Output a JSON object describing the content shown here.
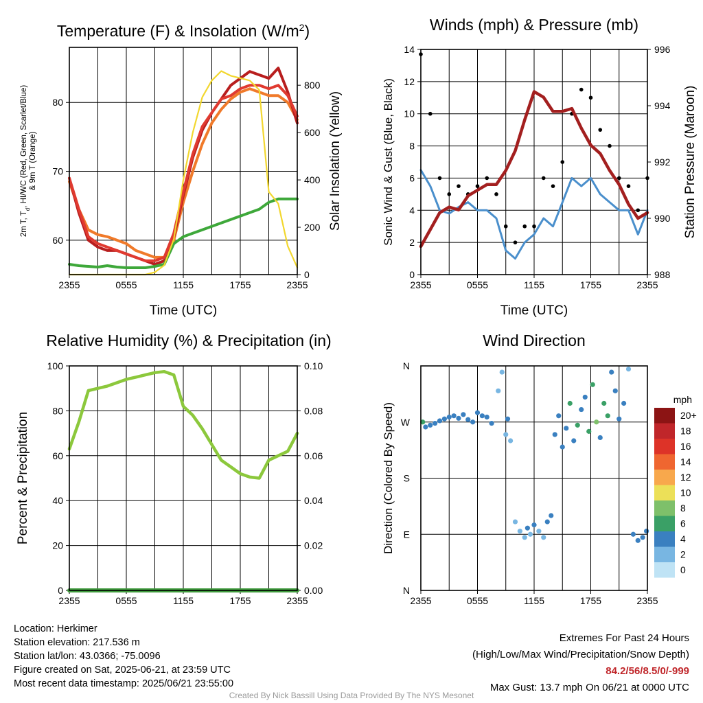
{
  "chart_data": [
    {
      "type": "line",
      "title": "Temperature (F) & Insolation (W/m2)",
      "title_main": "Temperature (F) & Insolation (W/m",
      "title_sup": "2",
      "title_end": ")",
      "xlabel": "Time (UTC)",
      "ylabel_left_lines": [
        "2m T, T, HI/WC (Red, Green, Scarlet/Blue)",
        "& 9m T (Orange)"
      ],
      "ylabel_left_sub": "d",
      "ylabel_right": "Solar Insolation (Yellow)",
      "xticks": [
        "2355",
        "0555",
        "1155",
        "1755",
        "2355"
      ],
      "ylim": [
        55,
        88
      ],
      "yticks": [
        60,
        70,
        80
      ],
      "y2lim": [
        0,
        960
      ],
      "y2ticks": [
        0,
        200,
        400,
        600,
        800
      ],
      "x_hours": [
        0,
        1,
        2,
        3,
        4,
        5,
        6,
        7,
        8,
        9,
        10,
        11,
        12,
        13,
        14,
        15,
        16,
        17,
        18,
        19,
        20,
        21,
        22,
        23,
        24
      ],
      "series": [
        {
          "color": "#f07a2a",
          "values": [
            68.5,
            64.5,
            61.5,
            60.8,
            60.5,
            60.0,
            59.5,
            58.5,
            58.0,
            57.5,
            57.5,
            60.0,
            65.5,
            70.0,
            74.0,
            77.0,
            79.0,
            80.5,
            81.5,
            82.0,
            81.5,
            81.0,
            81.0,
            80.0,
            77.5
          ]
        },
        {
          "color": "#b81e1e",
          "values": [
            69.0,
            64.0,
            60.0,
            59.0,
            58.5,
            58.5,
            58.0,
            57.5,
            57.0,
            56.5,
            57.0,
            60.5,
            66.5,
            72.0,
            76.0,
            78.5,
            80.5,
            82.5,
            83.5,
            84.5,
            84.0,
            83.5,
            85.0,
            81.5,
            77.0
          ]
        },
        {
          "color": "#e03a30",
          "values": [
            69.0,
            64.5,
            60.5,
            59.5,
            59.0,
            58.5,
            58.0,
            57.5,
            57.0,
            57.0,
            57.5,
            61.0,
            67.0,
            72.5,
            76.5,
            78.5,
            80.5,
            81.0,
            82.0,
            82.5,
            82.5,
            82.0,
            82.5,
            81.0,
            78.0
          ]
        },
        {
          "color": "#3ea83a",
          "values": [
            56.5,
            56.3,
            56.2,
            56.1,
            56.3,
            56.1,
            56.0,
            56.0,
            56.0,
            56.2,
            56.5,
            59.5,
            60.5,
            61.0,
            61.5,
            62.0,
            62.5,
            63.0,
            63.5,
            64.0,
            64.5,
            65.5,
            66.0,
            66.0,
            66.0
          ]
        },
        {
          "color": "#f2d72f",
          "axis": "right",
          "values": [
            0,
            0,
            0,
            0,
            0,
            0,
            0,
            0,
            0,
            10,
            40,
            150,
            400,
            600,
            750,
            820,
            860,
            840,
            830,
            820,
            780,
            350,
            300,
            120,
            30
          ]
        }
      ]
    },
    {
      "type": "line",
      "title": "Winds (mph) & Pressure (mb)",
      "xlabel": "Time (UTC)",
      "ylabel": "Sonic Wind & Gust (Blue, Black)",
      "ylabel_right": "Station Pressure (Maroon)",
      "xticks": [
        "2355",
        "0555",
        "1155",
        "1755",
        "2355"
      ],
      "ylim": [
        0,
        14
      ],
      "yticks": [
        0,
        2,
        4,
        6,
        8,
        10,
        12,
        14
      ],
      "y2lim": [
        988,
        996
      ],
      "y2ticks": [
        988,
        990,
        992,
        994,
        996
      ],
      "x_hours": [
        0,
        1,
        2,
        3,
        4,
        5,
        6,
        7,
        8,
        9,
        10,
        11,
        12,
        13,
        14,
        15,
        16,
        17,
        18,
        19,
        20,
        21,
        22,
        23,
        24
      ],
      "series": [
        {
          "name_hint": "wind",
          "color": "#4a8fcc",
          "values": [
            6.5,
            5.5,
            4.0,
            3.8,
            4.2,
            4.5,
            4.0,
            4.0,
            3.5,
            1.5,
            1.0,
            2.0,
            2.5,
            3.5,
            3.0,
            4.5,
            6.0,
            5.5,
            6.0,
            5.0,
            4.5,
            4.0,
            4.0,
            2.5,
            4.0
          ]
        },
        {
          "name_hint": "gust",
          "color": "#000000",
          "values": [
            13.7,
            10.0,
            6.0,
            5.0,
            5.5,
            5.0,
            5.5,
            6.0,
            5.0,
            3.0,
            2.0,
            3.0,
            3.0,
            6.0,
            5.5,
            7.0,
            10.0,
            11.5,
            11.0,
            9.0,
            8.0,
            6.0,
            5.5,
            4.0,
            6.0
          ]
        },
        {
          "name_hint": "pressure",
          "color": "#a31f1f",
          "axis": "right",
          "values": [
            989.0,
            989.6,
            990.2,
            990.4,
            990.3,
            990.8,
            991.0,
            991.2,
            991.2,
            991.7,
            992.4,
            993.5,
            994.5,
            994.3,
            993.8,
            993.8,
            993.9,
            993.2,
            992.6,
            992.3,
            991.7,
            991.2,
            990.5,
            990.0,
            990.2
          ]
        }
      ]
    },
    {
      "type": "line",
      "title": "Relative Humidity (%) & Precipitation (in)",
      "ylabel": "Percent & Precipitation",
      "xticks": [
        "2355",
        "0555",
        "1155",
        "1755",
        "2355"
      ],
      "ylim": [
        0,
        100
      ],
      "yticks": [
        0,
        20,
        40,
        60,
        80,
        100
      ],
      "y2lim": [
        0,
        0.1
      ],
      "y2ticks": [
        "0.00",
        "0.02",
        "0.04",
        "0.06",
        "0.08",
        "0.10"
      ],
      "x_hours": [
        0,
        1,
        2,
        3,
        4,
        5,
        6,
        7,
        8,
        9,
        10,
        11,
        12,
        13,
        14,
        15,
        16,
        17,
        18,
        19,
        20,
        21,
        22,
        23,
        24
      ],
      "series": [
        {
          "name_hint": "rh",
          "color": "#8cc83c",
          "values": [
            63,
            75,
            89,
            90,
            91,
            92.5,
            94,
            95,
            96,
            97,
            97.5,
            96,
            82,
            78,
            72,
            65,
            58,
            55,
            52,
            50.5,
            50,
            58,
            60,
            62,
            70
          ]
        },
        {
          "name_hint": "precip",
          "color": "#3f9b3c",
          "axis": "right",
          "values": [
            0,
            0,
            0,
            0,
            0,
            0,
            0,
            0,
            0,
            0,
            0,
            0,
            0,
            0,
            0,
            0,
            0,
            0,
            0,
            0,
            0,
            0,
            0,
            0,
            0
          ]
        }
      ]
    },
    {
      "type": "scatter",
      "title": "Wind Direction",
      "ylabel": "Direction (Colored By Speed)",
      "xticks": [
        "2355",
        "0555",
        "1155",
        "1755",
        "2355"
      ],
      "yticks": [
        "N",
        "E",
        "S",
        "W",
        "N"
      ],
      "ylim": [
        0,
        360
      ],
      "legend_title": "mph",
      "legend_labels": [
        "20+",
        "18",
        "16",
        "14",
        "12",
        "10",
        "8",
        "6",
        "4",
        "2",
        "0"
      ],
      "legend_colors": [
        "#8c1414",
        "#c0262a",
        "#dd3328",
        "#ef6630",
        "#f8a84c",
        "#ece058",
        "#7ec06a",
        "#3aa066",
        "#3a80c0",
        "#78b6e2",
        "#bfe3f5"
      ],
      "x_hours": [
        0.2,
        0.5,
        1.0,
        1.5,
        2.0,
        2.5,
        3.0,
        3.5,
        4.0,
        4.5,
        5.0,
        5.5,
        6.0,
        6.5,
        7.0,
        7.5,
        8.2,
        8.6,
        9.0,
        9.2,
        9.5,
        10.0,
        10.5,
        11.0,
        11.3,
        11.6,
        12.0,
        12.5,
        13.0,
        13.4,
        13.8,
        14.2,
        14.6,
        15.0,
        15.4,
        15.8,
        16.2,
        16.6,
        17.0,
        17.4,
        17.8,
        18.2,
        18.6,
        19.0,
        19.4,
        19.8,
        20.2,
        20.6,
        21.0,
        21.5,
        22.0,
        22.5,
        23.0,
        23.5,
        23.9
      ],
      "y_deg": [
        270,
        262,
        265,
        268,
        272,
        275,
        278,
        280,
        276,
        282,
        274,
        270,
        285,
        280,
        278,
        268,
        320,
        350,
        250,
        275,
        240,
        110,
        95,
        85,
        100,
        90,
        105,
        95,
        85,
        110,
        120,
        250,
        280,
        230,
        260,
        300,
        240,
        265,
        290,
        310,
        255,
        330,
        270,
        245,
        300,
        280,
        350,
        320,
        275,
        300,
        355,
        90,
        80,
        85,
        95
      ],
      "speed": [
        6,
        4,
        4,
        4,
        4,
        4,
        4,
        4,
        4,
        4,
        3,
        4,
        4,
        3,
        4,
        4,
        2,
        1,
        2,
        3,
        1,
        2,
        1,
        2,
        3,
        2,
        3,
        2,
        2,
        4,
        3,
        4,
        3,
        3,
        4,
        5,
        4,
        6,
        4,
        4,
        6,
        5,
        7,
        4,
        5,
        6,
        3,
        4,
        4,
        3,
        2,
        4,
        3,
        4,
        4
      ]
    }
  ],
  "info": {
    "location": "Location: Herkimer",
    "elevation": "Station elevation: 217.536 m",
    "latlon": "Station lat/lon: 43.0366; -75.0096",
    "created": "Figure created on Sat, 2025-06-21, at 23:59 UTC",
    "recent": "Most recent data timestamp: 2025/06/21 23:55:00"
  },
  "extremes": {
    "title": "Extremes For Past 24 Hours",
    "subtitle": "(High/Low/Max Wind/Precipitation/Snow Depth)",
    "values": "84.2/56/8.5/0/-999",
    "gust": "Max Gust: 13.7 mph On 06/21 at 0000 UTC"
  },
  "credit": "Created By Nick Bassill Using Data Provided By The NYS Mesonet"
}
